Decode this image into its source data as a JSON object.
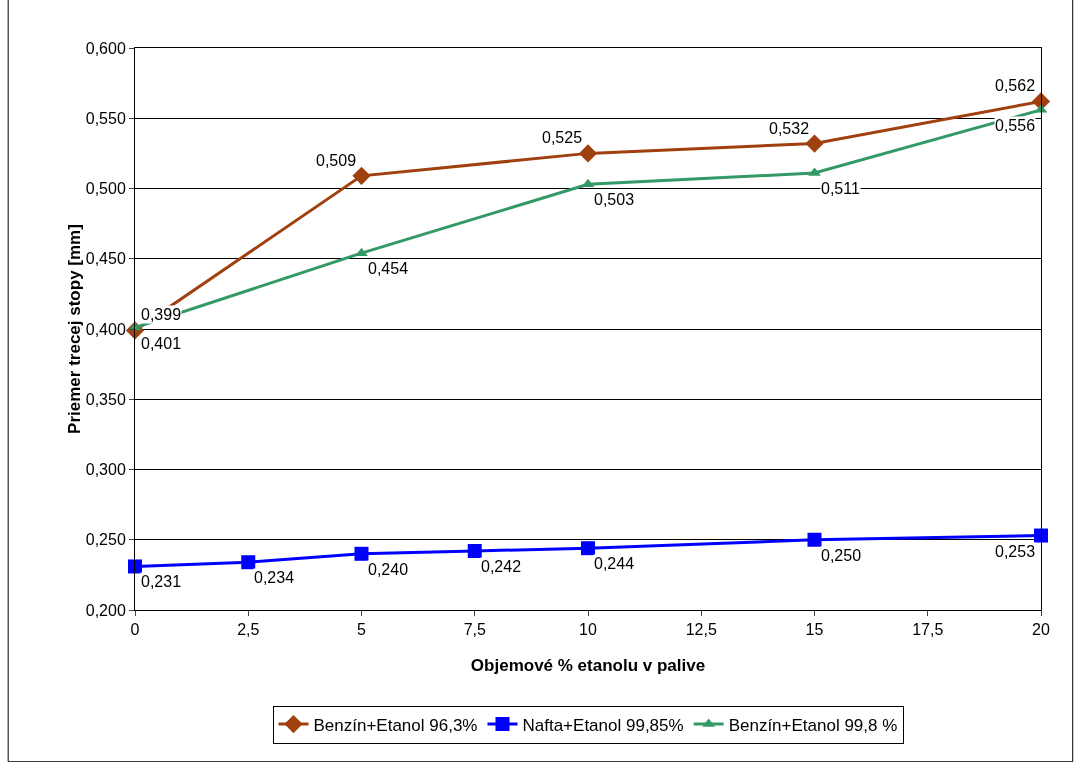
{
  "chart_data": {
    "type": "line",
    "xlabel": "Objemové % etanolu v palive",
    "ylabel": "Priemer trecej stopy [mm]",
    "series": [
      {
        "name": "Benzín+Etanol 96,3%",
        "color": "#a0400e",
        "marker": "diamond",
        "x": [
          0,
          5,
          10,
          15,
          20
        ],
        "values": [
          0.399,
          0.509,
          0.525,
          0.532,
          0.562
        ],
        "value_labels": [
          "0,399",
          "0,509",
          "0,525",
          "0,532",
          "0,562"
        ]
      },
      {
        "name": "Nafta+Etanol 99,85%",
        "color": "#0000ff",
        "marker": "square",
        "x": [
          0,
          2.5,
          5,
          7.5,
          10,
          15,
          20
        ],
        "values": [
          0.231,
          0.234,
          0.24,
          0.242,
          0.244,
          0.25,
          0.253
        ],
        "value_labels": [
          "0,231",
          "0,234",
          "0,240",
          "0,242",
          "0,244",
          "0,250",
          "0,253"
        ]
      },
      {
        "name": "Benzín+Etanol 99,8 %",
        "color": "#339966",
        "marker": "triangle",
        "x": [
          0,
          5,
          10,
          15,
          20
        ],
        "values": [
          0.401,
          0.454,
          0.503,
          0.511,
          0.556
        ],
        "value_labels": [
          "0,401",
          "0,454",
          "0,503",
          "0,511",
          "0,556"
        ]
      }
    ],
    "xlim": [
      0,
      20
    ],
    "xticks": [
      0,
      {
        "value": 2.5,
        "label": "2,5"
      },
      5,
      {
        "value": 7.5,
        "label": "7,5"
      },
      10,
      {
        "value": 12.5,
        "label": "12,5"
      },
      15,
      {
        "value": 17.5,
        "label": "17,5"
      },
      20
    ],
    "ylim": [
      0.2,
      0.6
    ],
    "yticks": [
      {
        "value": 0.2,
        "label": "0,200"
      },
      {
        "value": 0.25,
        "label": "0,250"
      },
      {
        "value": 0.3,
        "label": "0,300"
      },
      {
        "value": 0.35,
        "label": "0,350"
      },
      {
        "value": 0.4,
        "label": "0,400"
      },
      {
        "value": 0.45,
        "label": "0,450"
      },
      {
        "value": 0.5,
        "label": "0,500"
      },
      {
        "value": 0.55,
        "label": "0,550"
      },
      {
        "value": 0.6,
        "label": "0,600"
      }
    ],
    "grid": "y",
    "legend": "bottom",
    "line_style": "solid"
  }
}
